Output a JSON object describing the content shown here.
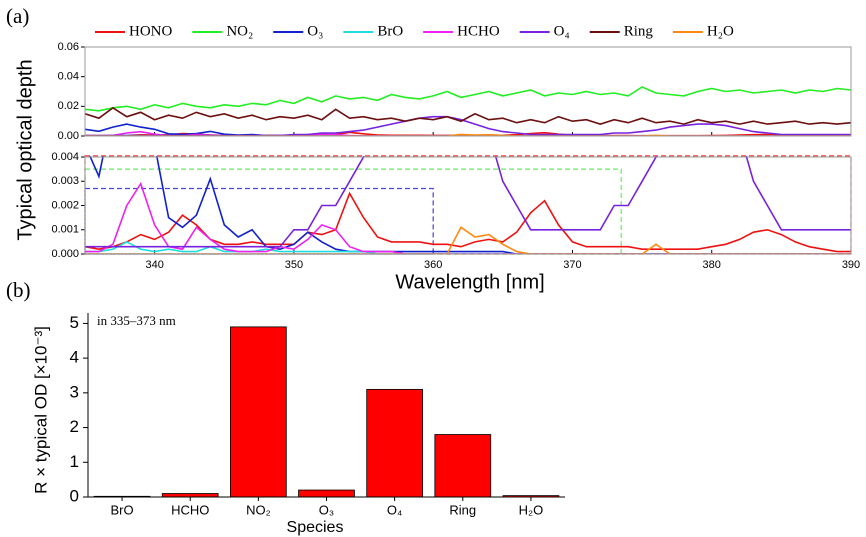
{
  "chart_data": [
    {
      "type": "line",
      "panel_label": "(a)",
      "ylabel": "Typical optical depth",
      "xlabel": "Wavelength [nm]",
      "x": [
        335,
        336,
        337,
        338,
        339,
        340,
        341,
        342,
        343,
        344,
        345,
        346,
        347,
        348,
        349,
        350,
        351,
        352,
        353,
        354,
        355,
        356,
        357,
        358,
        359,
        360,
        361,
        362,
        363,
        364,
        365,
        366,
        367,
        368,
        369,
        370,
        371,
        372,
        373,
        374,
        375,
        376,
        377,
        378,
        379,
        380,
        381,
        382,
        383,
        384,
        385,
        386,
        387,
        388,
        389,
        390
      ],
      "xlim": [
        335,
        390
      ],
      "xticks": [
        340,
        350,
        360,
        370,
        380,
        390
      ],
      "panels": [
        {
          "ylim": [
            0,
            0.06
          ],
          "yticks": [
            {
              "value": 0,
              "label": "0.00"
            },
            0.02,
            0.04,
            0.06
          ]
        },
        {
          "ylim": [
            0,
            0.004
          ],
          "yticks": [
            {
              "value": 0,
              "label": "0.000"
            },
            0.001,
            0.002,
            0.003,
            0.004
          ]
        }
      ],
      "windows": [
        {
          "xlim": [
            335,
            390
          ],
          "ytop": 0.00405,
          "color": "#ff3333"
        },
        {
          "xlim": [
            335,
            373.5
          ],
          "ytop": 0.0035,
          "color": "#66ee66"
        },
        {
          "xlim": [
            335,
            360
          ],
          "ytop": 0.0027,
          "color": "#4444dd"
        }
      ],
      "series": [
        {
          "name": "HONO",
          "color": "#ee1111",
          "values": [
            0.0003,
            0.0002,
            0.0003,
            0.0005,
            0.0008,
            0.0006,
            0.0009,
            0.0016,
            0.0012,
            0.0006,
            0.0004,
            0.0004,
            0.0005,
            0.0004,
            0.0004,
            0.0004,
            0.0009,
            0.0008,
            0.001,
            0.0025,
            0.0015,
            0.0007,
            0.0005,
            0.0005,
            0.0005,
            0.0004,
            0.0004,
            0.0003,
            0.0005,
            0.0006,
            0.0005,
            0.0009,
            0.0017,
            0.0022,
            0.0012,
            0.0005,
            0.0003,
            0.0003,
            0.0003,
            0.0003,
            0.0002,
            0.0002,
            0.0002,
            0.0002,
            0.0002,
            0.0003,
            0.0004,
            0.0006,
            0.0009,
            0.001,
            0.0008,
            0.0005,
            0.0003,
            0.0002,
            0.0001,
            0.0001
          ]
        },
        {
          "name": "NO₂",
          "color": "#22ee22",
          "values": [
            0.018,
            0.017,
            0.019,
            0.02,
            0.018,
            0.021,
            0.019,
            0.022,
            0.02,
            0.019,
            0.021,
            0.02,
            0.022,
            0.021,
            0.024,
            0.022,
            0.026,
            0.023,
            0.027,
            0.025,
            0.026,
            0.024,
            0.028,
            0.026,
            0.025,
            0.027,
            0.03,
            0.026,
            0.028,
            0.03,
            0.027,
            0.029,
            0.031,
            0.027,
            0.029,
            0.028,
            0.03,
            0.028,
            0.029,
            0.027,
            0.033,
            0.029,
            0.028,
            0.027,
            0.03,
            0.032,
            0.03,
            0.031,
            0.029,
            0.03,
            0.031,
            0.029,
            0.031,
            0.03,
            0.032,
            0.031
          ]
        },
        {
          "name": "O₃",
          "color": "#1122cc",
          "values": [
            0.0045,
            0.0032,
            0.006,
            0.008,
            0.006,
            0.0045,
            0.0015,
            0.0011,
            0.0016,
            0.0031,
            0.0012,
            0.0007,
            0.001,
            0.0003,
            0.0002,
            0.0004,
            0.0009,
            0.0005,
            0.0002,
            0.0001,
            0.0001,
            0.0001,
            0.0001,
            0.0001,
            0.0001,
            0.0001,
            0.0001,
            0.0001,
            0.0001,
            0.0001,
            0.0001,
            0,
            0,
            0,
            0,
            0,
            0,
            0,
            0,
            0,
            0,
            0,
            0,
            0,
            0,
            0,
            0,
            0,
            0,
            0,
            0,
            0,
            0,
            0,
            0,
            0
          ]
        },
        {
          "name": "BrO",
          "color": "#22dddd",
          "values": [
            0.0001,
            0.0001,
            0.0002,
            0.0005,
            0.0002,
            0.0001,
            0.0002,
            0.0001,
            0.0001,
            0.0003,
            0.0001,
            0.0001,
            0.0001,
            0.0002,
            0.0001,
            0.0001,
            0.0001,
            0.0001,
            0.0001,
            0.0001,
            0.0001,
            0,
            0,
            0,
            0,
            0,
            0,
            0,
            0,
            0,
            0,
            0,
            0,
            0,
            0,
            0,
            0,
            0,
            0,
            0,
            0,
            0,
            0,
            0,
            0,
            0,
            0,
            0,
            0,
            0,
            0,
            0,
            0,
            0,
            0,
            0
          ]
        },
        {
          "name": "HCHO",
          "color": "#ee22ee",
          "values": [
            0.0001,
            0.0001,
            0.0004,
            0.002,
            0.0029,
            0.0012,
            0.0003,
            0.0002,
            0.0011,
            0.0006,
            0.0002,
            0.0001,
            0.0001,
            0.0001,
            0.0003,
            0.0002,
            0.0006,
            0.0012,
            0.001,
            0.0003,
            0.0001,
            0.0001,
            0.0001,
            0,
            0,
            0,
            0,
            0,
            0,
            0,
            0,
            0,
            0,
            0,
            0,
            0,
            0,
            0,
            0,
            0,
            0,
            0,
            0,
            0,
            0,
            0,
            0,
            0,
            0,
            0,
            0,
            0,
            0,
            0,
            0,
            0
          ]
        },
        {
          "name": "O₄",
          "color": "#7722dd",
          "values": [
            0.0003,
            0.0003,
            0.0003,
            0.0003,
            0.0003,
            0.0003,
            0.0003,
            0.0003,
            0.0003,
            0.0003,
            0.0003,
            0.0003,
            0.0003,
            0.0003,
            0.0003,
            0.001,
            0.001,
            0.002,
            0.002,
            0.003,
            0.004,
            0.006,
            0.008,
            0.01,
            0.012,
            0.013,
            0.013,
            0.011,
            0.008,
            0.005,
            0.003,
            0.002,
            0.001,
            0.001,
            0.001,
            0.001,
            0.001,
            0.001,
            0.002,
            0.002,
            0.003,
            0.004,
            0.006,
            0.007,
            0.008,
            0.008,
            0.007,
            0.005,
            0.003,
            0.002,
            0.001,
            0.001,
            0.001,
            0.001,
            0.001,
            0.001
          ]
        },
        {
          "name": "Ring",
          "color": "#6b0f0f",
          "values": [
            0.015,
            0.012,
            0.019,
            0.013,
            0.016,
            0.011,
            0.014,
            0.012,
            0.016,
            0.013,
            0.015,
            0.012,
            0.014,
            0.011,
            0.013,
            0.012,
            0.014,
            0.011,
            0.018,
            0.012,
            0.013,
            0.011,
            0.012,
            0.01,
            0.012,
            0.011,
            0.013,
            0.01,
            0.015,
            0.011,
            0.012,
            0.009,
            0.011,
            0.009,
            0.013,
            0.01,
            0.011,
            0.008,
            0.011,
            0.009,
            0.012,
            0.009,
            0.01,
            0.008,
            0.011,
            0.009,
            0.01,
            0.008,
            0.01,
            0.008,
            0.009,
            0.01,
            0.008,
            0.009,
            0.008,
            0.009
          ]
        },
        {
          "name": "H₂O",
          "color": "#ff8811",
          "values": [
            0,
            0,
            0,
            0,
            0,
            0,
            0,
            0,
            0,
            0,
            0,
            0,
            0,
            0,
            0,
            0,
            0,
            0,
            0,
            0,
            0,
            0,
            0,
            0,
            0,
            0,
            0,
            0.0011,
            0.0007,
            0.0008,
            0.0004,
            0.0001,
            0,
            0,
            0,
            0,
            0,
            0,
            0,
            0,
            0,
            0.0004,
            0,
            0,
            0,
            0,
            0,
            0,
            0,
            0,
            0,
            0,
            0,
            0,
            0,
            0
          ]
        }
      ]
    },
    {
      "type": "bar",
      "panel_label": "(b)",
      "annotation": "in 335–373 nm",
      "xlabel": "Species",
      "ylabel": "R × typical OD [×10⁻³]",
      "categories": [
        "BrO",
        "HCHO",
        "NO₂",
        "O₃",
        "O₄",
        "Ring",
        "H₂O"
      ],
      "values": [
        0.02,
        0.1,
        4.9,
        0.2,
        3.1,
        1.8,
        0.04
      ],
      "color": "#ff0000",
      "edge_color": "#000000",
      "ylim": [
        0,
        5.3
      ],
      "yticks": [
        0,
        1,
        2,
        3,
        4,
        5
      ]
    }
  ]
}
